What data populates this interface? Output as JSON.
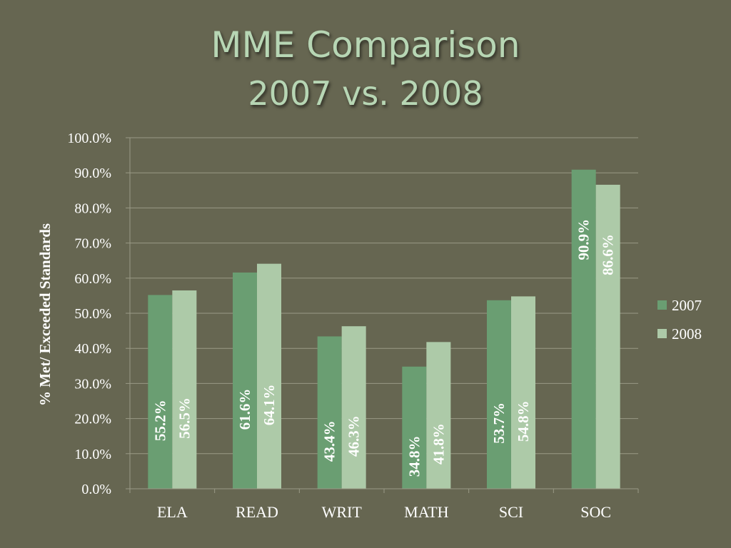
{
  "title": {
    "line1": "MME Comparison",
    "line2": "2007 vs. 2008"
  },
  "colors": {
    "background": "#666651",
    "title": "#b7d6b4",
    "series_2007": "#6a9e72",
    "series_2008": "#adcaa8",
    "gridline": "#9a9a86",
    "text": "#ffffff"
  },
  "chart_data": {
    "type": "bar",
    "categories": [
      "ELA",
      "READ",
      "WRIT",
      "MATH",
      "SCI",
      "SOC"
    ],
    "series": [
      {
        "name": "2007",
        "values": [
          55.2,
          61.6,
          43.4,
          34.8,
          53.7,
          90.9
        ],
        "labels": [
          "55.2%",
          "61.6%",
          "43.4%",
          "34.8%",
          "53.7%",
          "90.9%"
        ]
      },
      {
        "name": "2008",
        "values": [
          56.5,
          64.1,
          46.3,
          41.8,
          54.8,
          86.6
        ],
        "labels": [
          "56.5%",
          "64.1%",
          "46.3%",
          "41.8%",
          "54.8%",
          "86.6%"
        ]
      }
    ],
    "ylabel": "% Met/ Exceeded Standards",
    "xlabel": "",
    "ylim": [
      0,
      100
    ],
    "yticks": [
      0,
      10,
      20,
      30,
      40,
      50,
      60,
      70,
      80,
      90,
      100
    ],
    "ytick_labels": [
      "0.0%",
      "10.0%",
      "20.0%",
      "30.0%",
      "40.0%",
      "50.0%",
      "60.0%",
      "70.0%",
      "80.0%",
      "90.0%",
      "100.0%"
    ],
    "grid": true,
    "legend_position": "right",
    "data_labels": "inside-rotated"
  }
}
